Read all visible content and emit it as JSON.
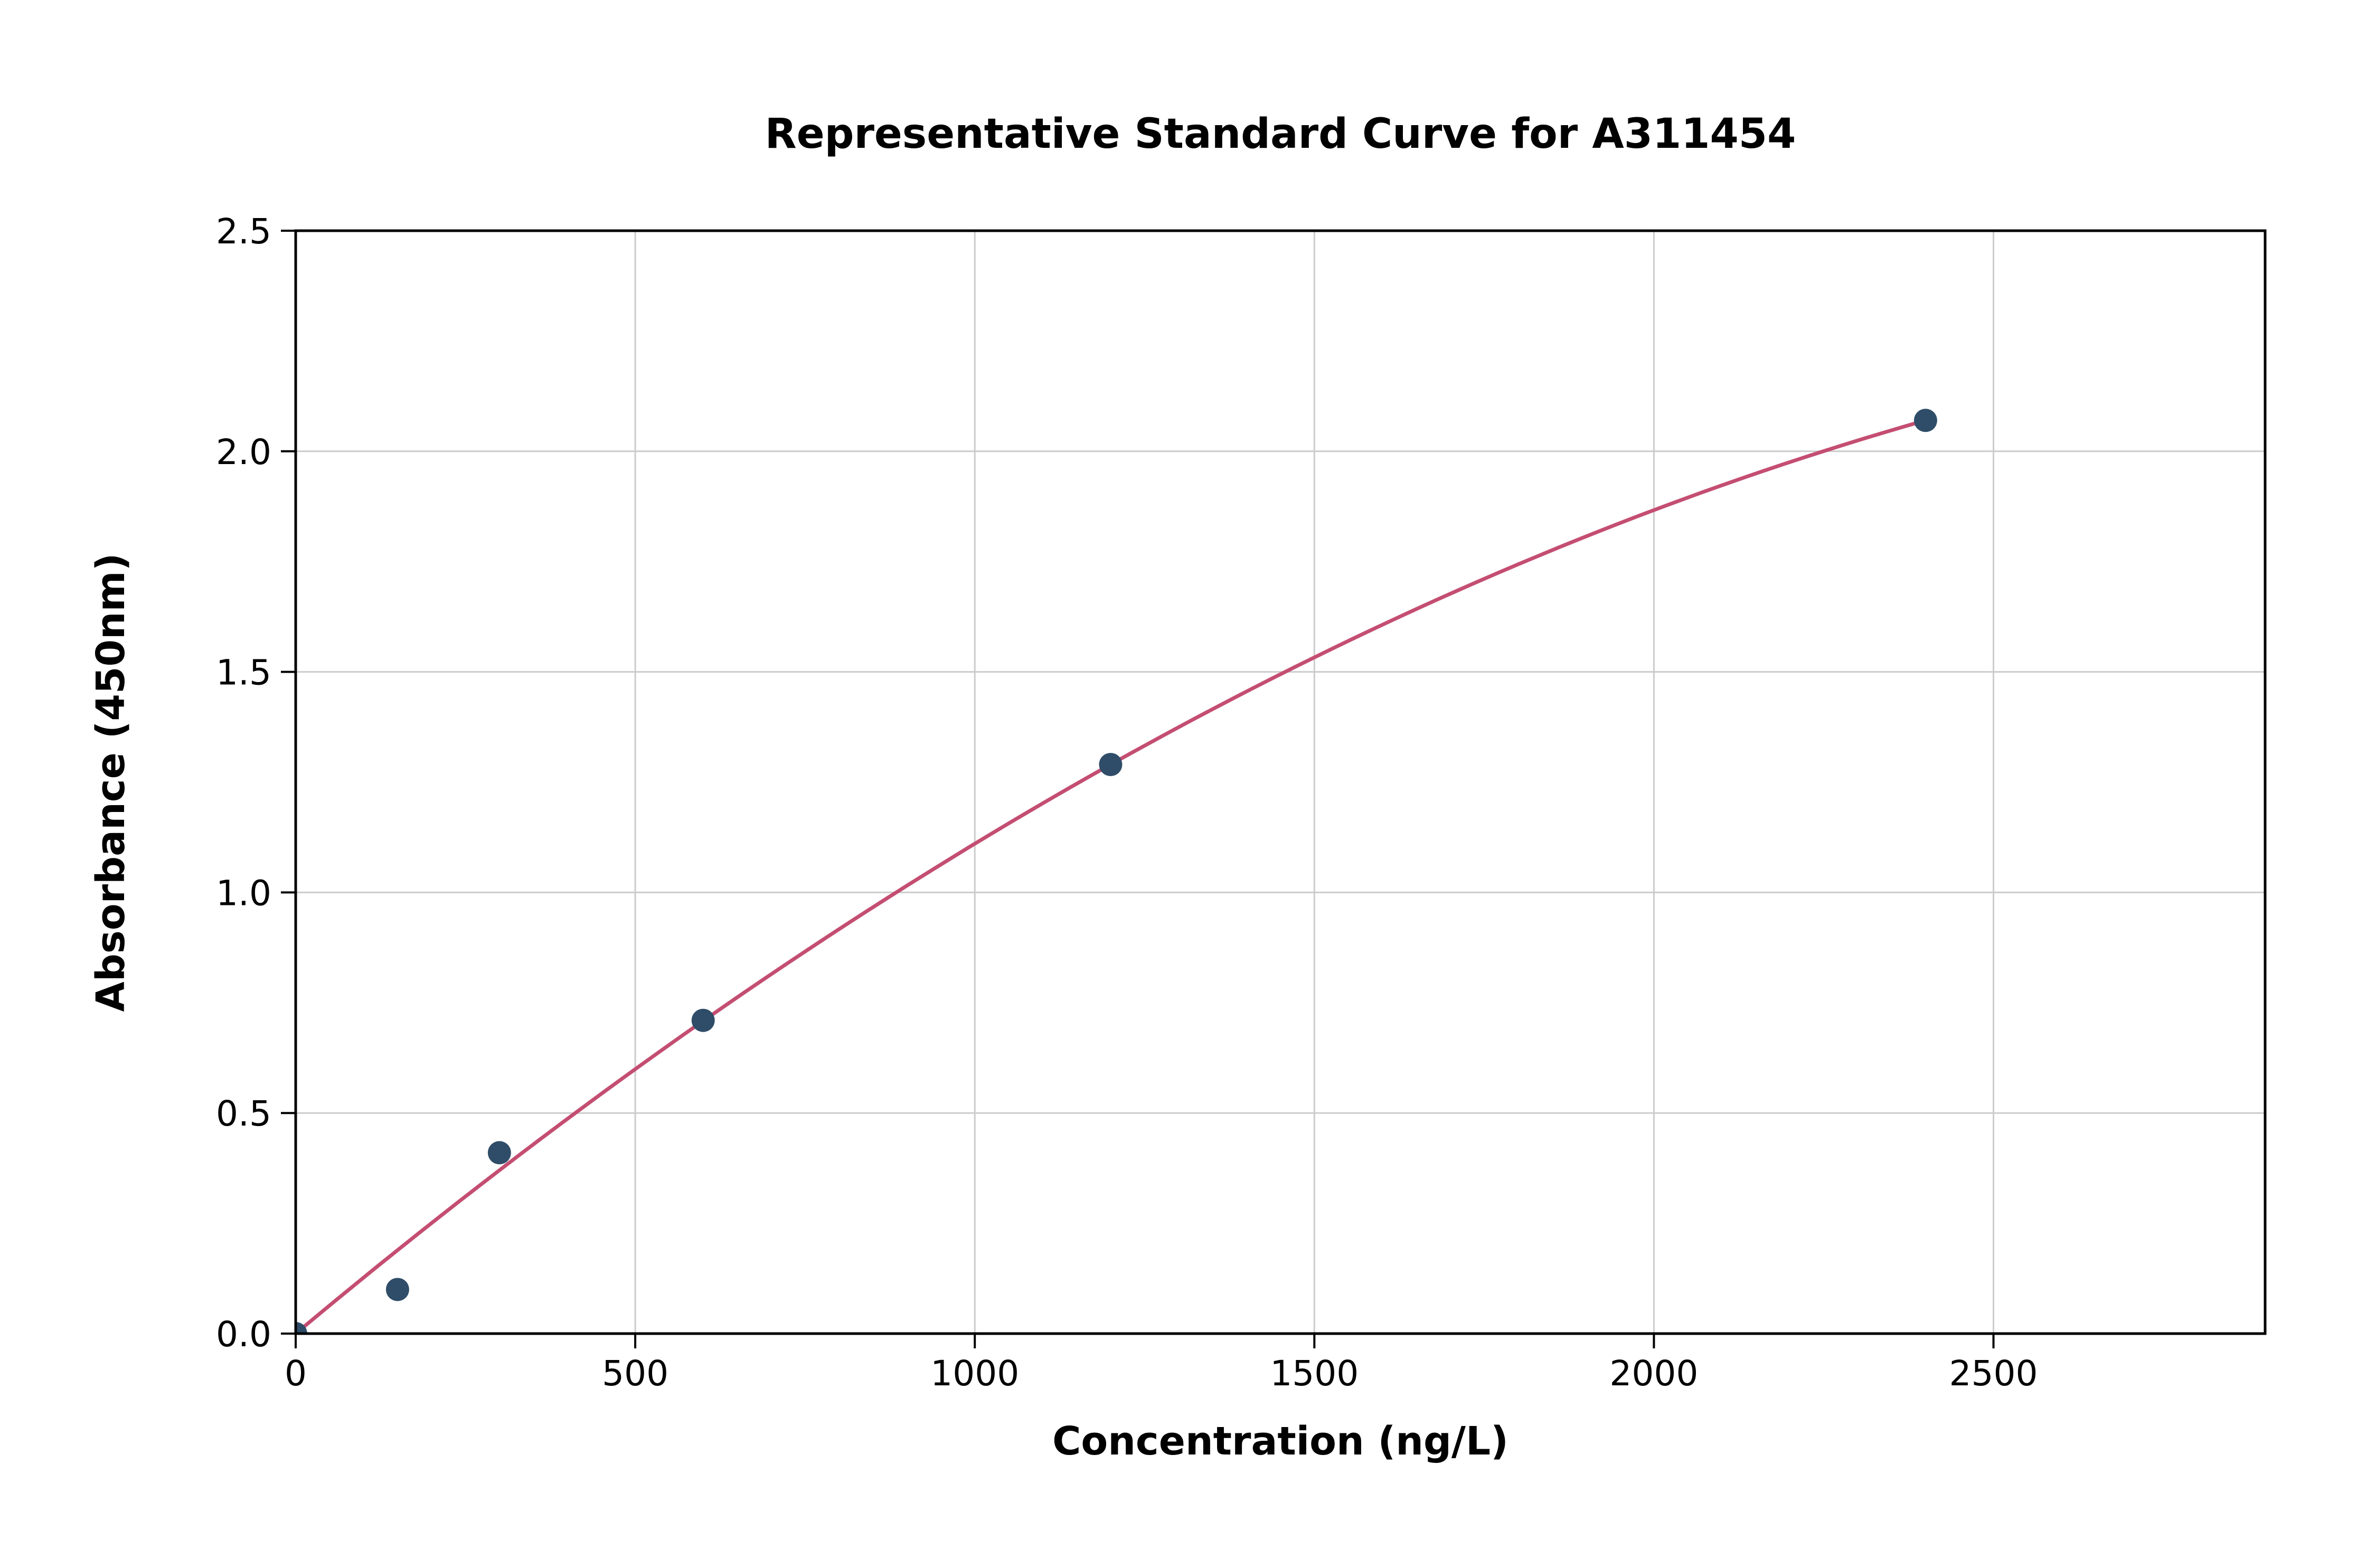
{
  "chart_data": {
    "type": "scatter",
    "title": "Representative Standard Curve for A311454",
    "xlabel": "Concentration (ng/L)",
    "ylabel": "Absorbance (450nm)",
    "x": [
      0,
      150,
      300,
      600,
      1200,
      2400
    ],
    "y": [
      0.0,
      0.1,
      0.41,
      0.71,
      1.29,
      2.07
    ],
    "xlim": [
      0,
      2900
    ],
    "ylim": [
      0,
      2.5
    ],
    "xticks": [
      0,
      500,
      1000,
      1500,
      2000,
      2500
    ],
    "xtick_labels": [
      "0",
      "500",
      "1000",
      "1500",
      "2000",
      "2500"
    ],
    "yticks": [
      0.0,
      0.5,
      1.0,
      1.5,
      2.0,
      2.5
    ],
    "ytick_labels": [
      "0.0",
      "0.5",
      "1.0",
      "1.5",
      "2.0",
      "2.5"
    ],
    "grid": true,
    "legend": "none",
    "point_color": "#2f4d68",
    "curve_color": "#c44e72",
    "grid_color": "#cccccc",
    "axis_color": "#000000",
    "trendline": {
      "type": "quadratic",
      "a": 0.0012875,
      "b": -1.7708e-07,
      "x_range": [
        0,
        2400
      ]
    }
  }
}
